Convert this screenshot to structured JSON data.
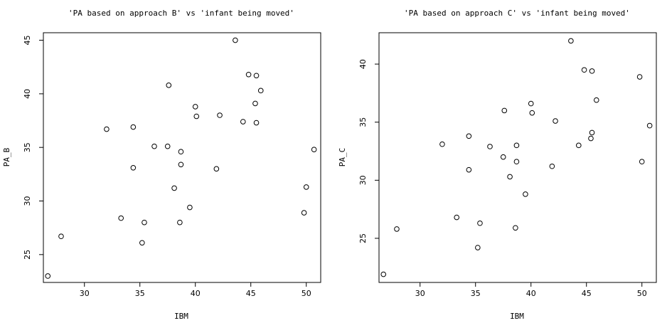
{
  "chart_data": [
    {
      "type": "scatter",
      "title": "'PA based on approach B' vs 'infant being moved'",
      "xlabel": "IBM",
      "ylabel": "PA_B",
      "xlim": [
        26.3,
        51.3
      ],
      "ylim": [
        22.4,
        45.7
      ],
      "xticks": [
        "30",
        "35",
        "40",
        "45",
        "50"
      ],
      "yticks": [
        "25",
        "30",
        "35",
        "40",
        "45"
      ],
      "x": [
        26.7,
        27.9,
        32.0,
        33.3,
        34.4,
        34.4,
        35.2,
        35.4,
        36.3,
        37.5,
        37.6,
        38.1,
        38.6,
        38.7,
        38.7,
        39.5,
        40.0,
        40.1,
        41.9,
        42.2,
        43.6,
        44.3,
        44.8,
        45.4,
        45.5,
        45.5,
        45.9,
        49.8,
        50.0,
        50.7
      ],
      "y": [
        23.0,
        26.7,
        36.7,
        28.4,
        36.9,
        33.1,
        26.1,
        28.0,
        35.1,
        35.1,
        40.8,
        31.2,
        28.0,
        33.4,
        34.6,
        29.4,
        38.8,
        37.9,
        33.0,
        38.0,
        45.0,
        37.4,
        41.8,
        39.1,
        41.7,
        37.3,
        40.3,
        28.9,
        31.3,
        34.8
      ]
    },
    {
      "type": "scatter",
      "title": "'PA based on approach C' vs 'infant being moved'",
      "xlabel": "IBM",
      "ylabel": "PA_C",
      "xlim": [
        26.3,
        51.3
      ],
      "ylim": [
        21.2,
        42.7
      ],
      "xticks": [
        "30",
        "35",
        "40",
        "45",
        "50"
      ],
      "yticks": [
        "25",
        "30",
        "35",
        "40"
      ],
      "x": [
        26.7,
        27.9,
        32.0,
        33.3,
        34.4,
        34.4,
        35.2,
        35.4,
        36.3,
        37.5,
        37.6,
        38.1,
        38.6,
        38.7,
        38.7,
        39.5,
        40.0,
        40.1,
        41.9,
        42.2,
        43.6,
        44.3,
        44.8,
        45.4,
        45.5,
        45.5,
        45.9,
        49.8,
        50.0,
        50.7
      ],
      "y": [
        21.9,
        25.8,
        33.1,
        26.8,
        33.8,
        30.9,
        24.2,
        26.3,
        32.9,
        32.0,
        36.0,
        30.3,
        25.9,
        31.6,
        33.0,
        28.8,
        36.6,
        35.8,
        31.2,
        35.1,
        42.0,
        33.0,
        39.5,
        33.6,
        39.4,
        34.1,
        36.9,
        38.9,
        31.6,
        34.7
      ]
    }
  ]
}
